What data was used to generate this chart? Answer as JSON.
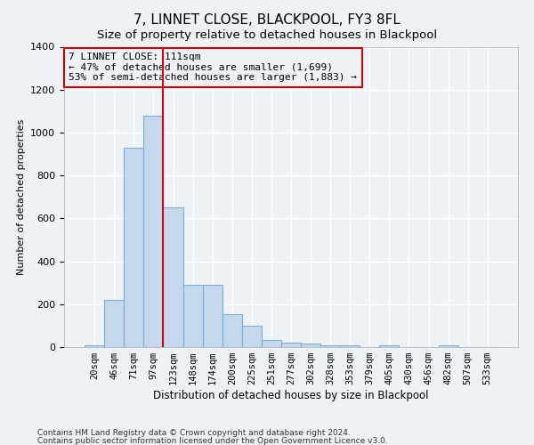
{
  "title": "7, LINNET CLOSE, BLACKPOOL, FY3 8FL",
  "subtitle": "Size of property relative to detached houses in Blackpool",
  "xlabel": "Distribution of detached houses by size in Blackpool",
  "ylabel": "Number of detached properties",
  "footer1": "Contains HM Land Registry data © Crown copyright and database right 2024.",
  "footer2": "Contains public sector information licensed under the Open Government Licence v3.0.",
  "bar_labels": [
    "20sqm",
    "46sqm",
    "71sqm",
    "97sqm",
    "123sqm",
    "148sqm",
    "174sqm",
    "200sqm",
    "225sqm",
    "251sqm",
    "277sqm",
    "302sqm",
    "328sqm",
    "353sqm",
    "379sqm",
    "405sqm",
    "430sqm",
    "456sqm",
    "482sqm",
    "507sqm",
    "533sqm"
  ],
  "bar_values": [
    10,
    220,
    930,
    1080,
    650,
    290,
    290,
    155,
    100,
    35,
    20,
    15,
    10,
    10,
    0,
    10,
    0,
    0,
    10,
    0,
    0
  ],
  "bar_color": "#c5d8ed",
  "bar_edgecolor": "#7aafd4",
  "vline_color": "#cc0000",
  "annotation_text": "7 LINNET CLOSE: 111sqm\n← 47% of detached houses are smaller (1,699)\n53% of semi-detached houses are larger (1,883) →",
  "annotation_box_edgecolor": "#cc0000",
  "ylim": [
    0,
    1400
  ],
  "yticks": [
    0,
    200,
    400,
    600,
    800,
    1000,
    1200,
    1400
  ],
  "background_color": "#eef2f7",
  "plot_background": "#eef2f7",
  "title_fontsize": 11,
  "grid_color": "#ffffff"
}
